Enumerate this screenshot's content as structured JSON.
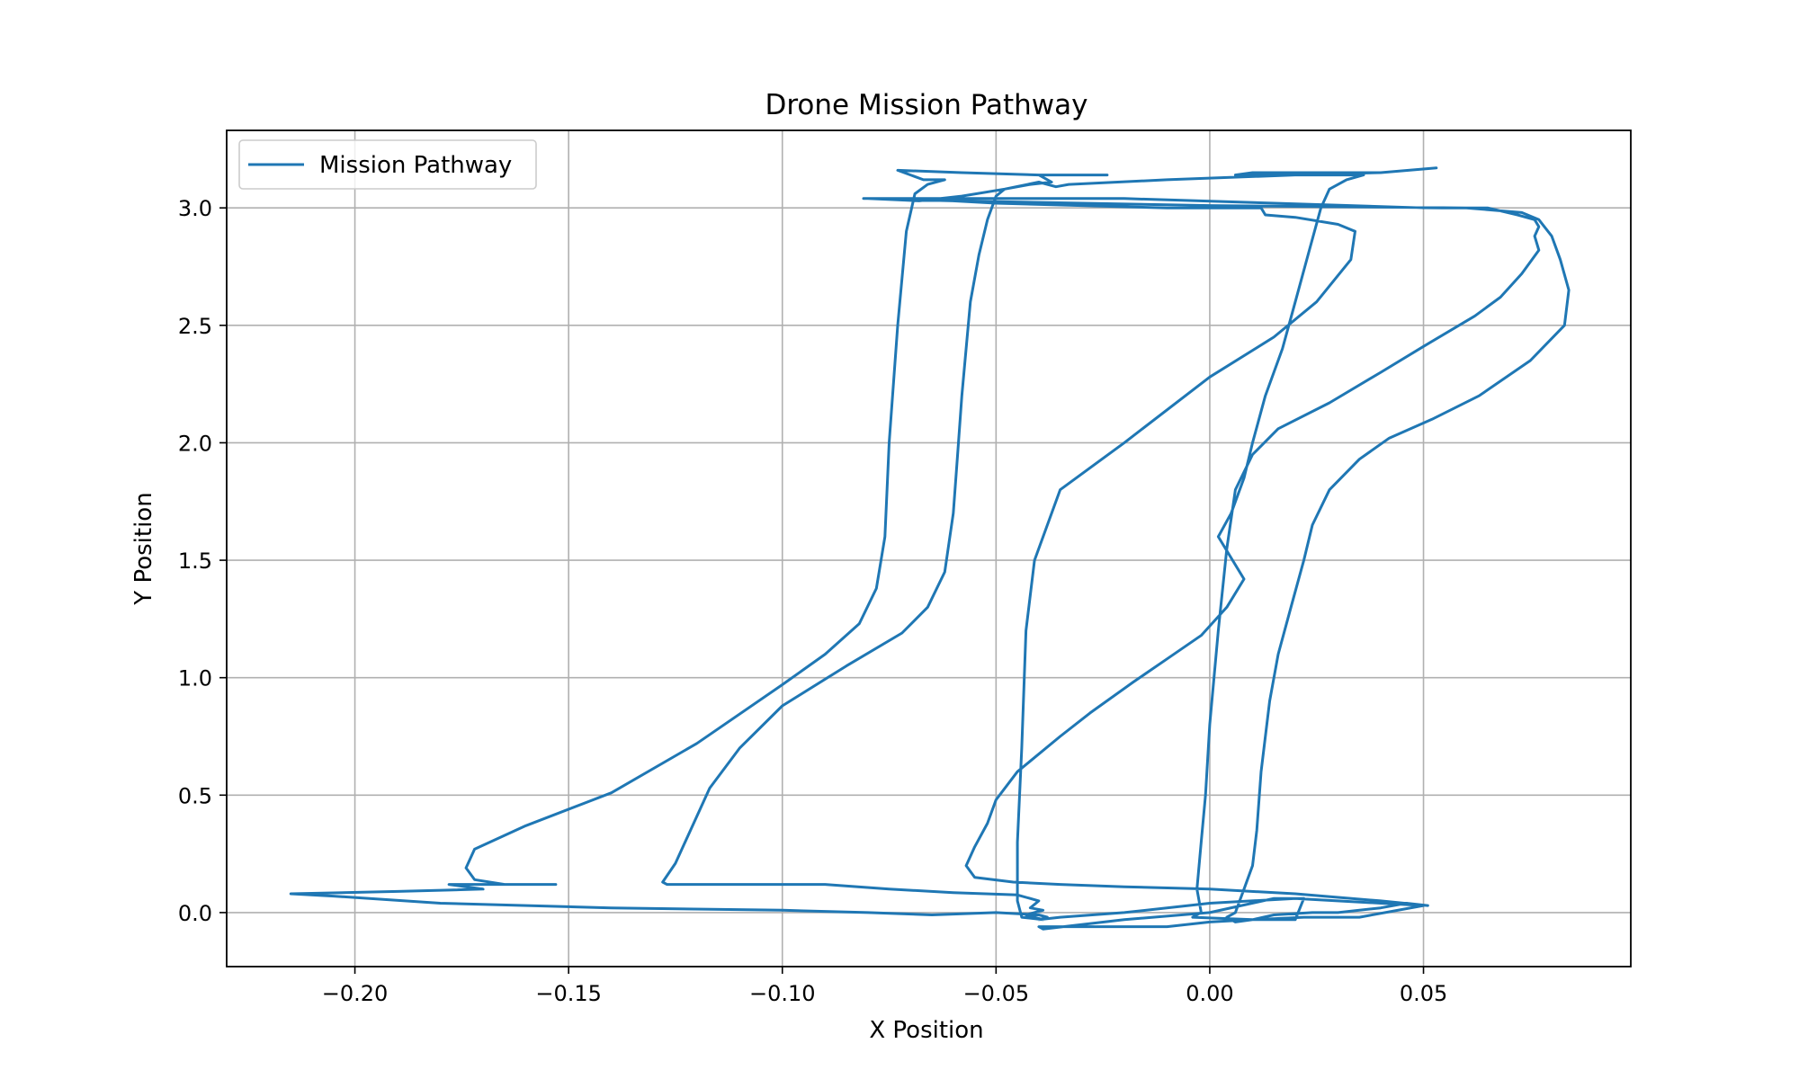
{
  "chart_data": {
    "type": "line",
    "title": "Drone Mission Pathway",
    "xlabel": "X Position",
    "ylabel": "Y Position",
    "xlim": [
      -0.23,
      0.0985
    ],
    "ylim": [
      -0.23,
      3.33
    ],
    "x_ticks": [
      -0.2,
      -0.15,
      -0.1,
      -0.05,
      0.0,
      0.05
    ],
    "x_tick_labels": [
      "−0.20",
      "−0.15",
      "−0.10",
      "−0.05",
      "0.00",
      "0.05"
    ],
    "y_ticks": [
      0.0,
      0.5,
      1.0,
      1.5,
      2.0,
      2.5,
      3.0
    ],
    "y_tick_labels": [
      "0.0",
      "0.5",
      "1.0",
      "1.5",
      "2.0",
      "2.5",
      "3.0"
    ],
    "grid": true,
    "legend_position": "upper-left",
    "series": [
      {
        "name": "Mission Pathway",
        "color": "#1f77b4",
        "points": [
          [
            -0.153,
            0.12
          ],
          [
            -0.165,
            0.12
          ],
          [
            -0.172,
            0.14
          ],
          [
            -0.174,
            0.19
          ],
          [
            -0.172,
            0.27
          ],
          [
            -0.16,
            0.37
          ],
          [
            -0.14,
            0.51
          ],
          [
            -0.12,
            0.72
          ],
          [
            -0.1,
            0.97
          ],
          [
            -0.09,
            1.1
          ],
          [
            -0.082,
            1.23
          ],
          [
            -0.078,
            1.38
          ],
          [
            -0.076,
            1.6
          ],
          [
            -0.075,
            2.0
          ],
          [
            -0.073,
            2.5
          ],
          [
            -0.071,
            2.9
          ],
          [
            -0.069,
            3.06
          ],
          [
            -0.066,
            3.1
          ],
          [
            -0.062,
            3.12
          ],
          [
            -0.067,
            3.12
          ],
          [
            -0.07,
            3.14
          ],
          [
            -0.073,
            3.16
          ],
          [
            -0.058,
            3.15
          ],
          [
            -0.04,
            3.14
          ],
          [
            -0.024,
            3.14
          ],
          [
            -0.04,
            3.14
          ],
          [
            -0.037,
            3.11
          ],
          [
            -0.042,
            3.1
          ],
          [
            -0.048,
            3.08
          ],
          [
            -0.05,
            3.05
          ],
          [
            -0.052,
            2.95
          ],
          [
            -0.054,
            2.8
          ],
          [
            -0.056,
            2.6
          ],
          [
            -0.058,
            2.2
          ],
          [
            -0.059,
            1.95
          ],
          [
            -0.06,
            1.7
          ],
          [
            -0.062,
            1.45
          ],
          [
            -0.066,
            1.3
          ],
          [
            -0.072,
            1.19
          ],
          [
            -0.085,
            1.05
          ],
          [
            -0.1,
            0.88
          ],
          [
            -0.11,
            0.7
          ],
          [
            -0.117,
            0.53
          ],
          [
            -0.122,
            0.33
          ],
          [
            -0.125,
            0.21
          ],
          [
            -0.128,
            0.13
          ],
          [
            -0.127,
            0.12
          ],
          [
            -0.11,
            0.12
          ],
          [
            -0.09,
            0.12
          ],
          [
            -0.075,
            0.1
          ],
          [
            -0.06,
            0.085
          ],
          [
            -0.045,
            0.075
          ],
          [
            -0.04,
            0.05
          ],
          [
            -0.042,
            0.02
          ],
          [
            -0.039,
            0.01
          ],
          [
            -0.043,
            -0.01
          ],
          [
            -0.039,
            -0.03
          ],
          [
            -0.044,
            -0.02
          ],
          [
            -0.045,
            0.05
          ],
          [
            -0.045,
            0.3
          ],
          [
            -0.044,
            0.7
          ],
          [
            -0.043,
            1.2
          ],
          [
            -0.041,
            1.5
          ],
          [
            -0.035,
            1.8
          ],
          [
            -0.02,
            2.0
          ],
          [
            0.0,
            2.28
          ],
          [
            0.015,
            2.45
          ],
          [
            0.025,
            2.6
          ],
          [
            0.033,
            2.78
          ],
          [
            0.034,
            2.9
          ],
          [
            0.03,
            2.93
          ],
          [
            0.02,
            2.96
          ],
          [
            0.013,
            2.97
          ],
          [
            0.012,
            3.0
          ],
          [
            -0.01,
            3.0
          ],
          [
            -0.05,
            3.02
          ],
          [
            -0.07,
            3.04
          ],
          [
            -0.081,
            3.04
          ],
          [
            -0.05,
            3.04
          ],
          [
            -0.02,
            3.04
          ],
          [
            0.05,
            3.0
          ],
          [
            0.065,
            3.0
          ],
          [
            0.072,
            2.97
          ],
          [
            0.076,
            2.95
          ],
          [
            0.077,
            2.92
          ],
          [
            0.076,
            2.88
          ],
          [
            0.077,
            2.82
          ],
          [
            0.073,
            2.72
          ],
          [
            0.068,
            2.62
          ],
          [
            0.062,
            2.54
          ],
          [
            0.05,
            2.41
          ],
          [
            0.04,
            2.3
          ],
          [
            0.028,
            2.17
          ],
          [
            0.016,
            2.06
          ],
          [
            0.01,
            1.95
          ],
          [
            0.006,
            1.8
          ],
          [
            0.004,
            1.55
          ],
          [
            0.002,
            1.2
          ],
          [
            0.0,
            0.8
          ],
          [
            -0.001,
            0.5
          ],
          [
            -0.002,
            0.3
          ],
          [
            -0.003,
            0.1
          ],
          [
            -0.002,
            0.0
          ],
          [
            -0.004,
            -0.02
          ],
          [
            0.01,
            -0.03
          ],
          [
            0.02,
            -0.03
          ],
          [
            0.022,
            0.06
          ],
          [
            0.015,
            0.06
          ],
          [
            0.0,
            0.0
          ],
          [
            -0.02,
            -0.03
          ],
          [
            -0.039,
            -0.07
          ],
          [
            -0.04,
            -0.06
          ],
          [
            -0.01,
            -0.06
          ],
          [
            0.0,
            -0.04
          ],
          [
            0.01,
            -0.03
          ],
          [
            0.015,
            -0.01
          ],
          [
            0.024,
            0.0
          ],
          [
            0.03,
            0.0
          ],
          [
            0.04,
            0.02
          ],
          [
            0.046,
            0.04
          ],
          [
            0.051,
            0.03
          ],
          [
            0.04,
            0.05
          ],
          [
            0.02,
            0.08
          ],
          [
            0.0,
            0.1
          ],
          [
            -0.02,
            0.11
          ],
          [
            -0.035,
            0.12
          ],
          [
            -0.046,
            0.13
          ],
          [
            -0.055,
            0.15
          ],
          [
            -0.057,
            0.2
          ],
          [
            -0.055,
            0.28
          ],
          [
            -0.052,
            0.38
          ],
          [
            -0.05,
            0.48
          ],
          [
            -0.045,
            0.6
          ],
          [
            -0.035,
            0.75
          ],
          [
            -0.028,
            0.85
          ],
          [
            -0.018,
            0.98
          ],
          [
            -0.01,
            1.08
          ],
          [
            -0.002,
            1.18
          ],
          [
            0.004,
            1.3
          ],
          [
            0.008,
            1.42
          ],
          [
            0.002,
            1.6
          ],
          [
            0.005,
            1.7
          ],
          [
            0.008,
            1.85
          ],
          [
            0.01,
            2.0
          ],
          [
            0.013,
            2.2
          ],
          [
            0.017,
            2.4
          ],
          [
            0.02,
            2.6
          ],
          [
            0.023,
            2.8
          ],
          [
            0.026,
            3.0
          ],
          [
            0.028,
            3.08
          ],
          [
            0.032,
            3.12
          ],
          [
            0.036,
            3.14
          ],
          [
            0.02,
            3.14
          ],
          [
            0.006,
            3.14
          ],
          [
            0.01,
            3.15
          ],
          [
            0.04,
            3.15
          ],
          [
            0.053,
            3.17
          ],
          [
            0.04,
            3.15
          ],
          [
            0.02,
            3.14
          ],
          [
            -0.01,
            3.12
          ],
          [
            -0.033,
            3.1
          ],
          [
            -0.036,
            3.09
          ],
          [
            -0.04,
            3.11
          ],
          [
            -0.048,
            3.08
          ],
          [
            -0.058,
            3.05
          ],
          [
            -0.068,
            3.03
          ],
          [
            -0.08,
            3.04
          ],
          [
            -0.06,
            3.03
          ],
          [
            0.0,
            3.01
          ],
          [
            0.06,
            3.0
          ],
          [
            0.073,
            2.98
          ],
          [
            0.077,
            2.95
          ],
          [
            0.08,
            2.88
          ],
          [
            0.082,
            2.78
          ],
          [
            0.084,
            2.65
          ],
          [
            0.083,
            2.5
          ],
          [
            0.075,
            2.35
          ],
          [
            0.063,
            2.2
          ],
          [
            0.052,
            2.1
          ],
          [
            0.042,
            2.02
          ],
          [
            0.035,
            1.93
          ],
          [
            0.028,
            1.8
          ],
          [
            0.024,
            1.65
          ],
          [
            0.022,
            1.5
          ],
          [
            0.019,
            1.3
          ],
          [
            0.016,
            1.1
          ],
          [
            0.014,
            0.9
          ],
          [
            0.012,
            0.6
          ],
          [
            0.011,
            0.35
          ],
          [
            0.01,
            0.2
          ],
          [
            0.008,
            0.1
          ],
          [
            0.006,
            0.0
          ],
          [
            0.004,
            -0.02
          ],
          [
            0.006,
            -0.04
          ],
          [
            0.01,
            -0.03
          ],
          [
            0.022,
            -0.02
          ],
          [
            0.035,
            -0.02
          ],
          [
            0.05,
            0.03
          ],
          [
            0.04,
            0.04
          ],
          [
            0.02,
            0.06
          ],
          [
            0.0,
            0.04
          ],
          [
            -0.02,
            0.0
          ],
          [
            -0.035,
            -0.02
          ],
          [
            -0.04,
            -0.03
          ],
          [
            -0.038,
            -0.02
          ],
          [
            -0.04,
            -0.01
          ],
          [
            -0.05,
            0.0
          ],
          [
            -0.065,
            -0.01
          ],
          [
            -0.08,
            0.0
          ],
          [
            -0.1,
            0.01
          ],
          [
            -0.14,
            0.02
          ],
          [
            -0.18,
            0.04
          ],
          [
            -0.205,
            0.07
          ],
          [
            -0.215,
            0.08
          ],
          [
            -0.19,
            0.09
          ],
          [
            -0.17,
            0.1
          ],
          [
            -0.178,
            0.12
          ],
          [
            -0.165,
            0.12
          ],
          [
            -0.153,
            0.12
          ]
        ]
      }
    ]
  }
}
